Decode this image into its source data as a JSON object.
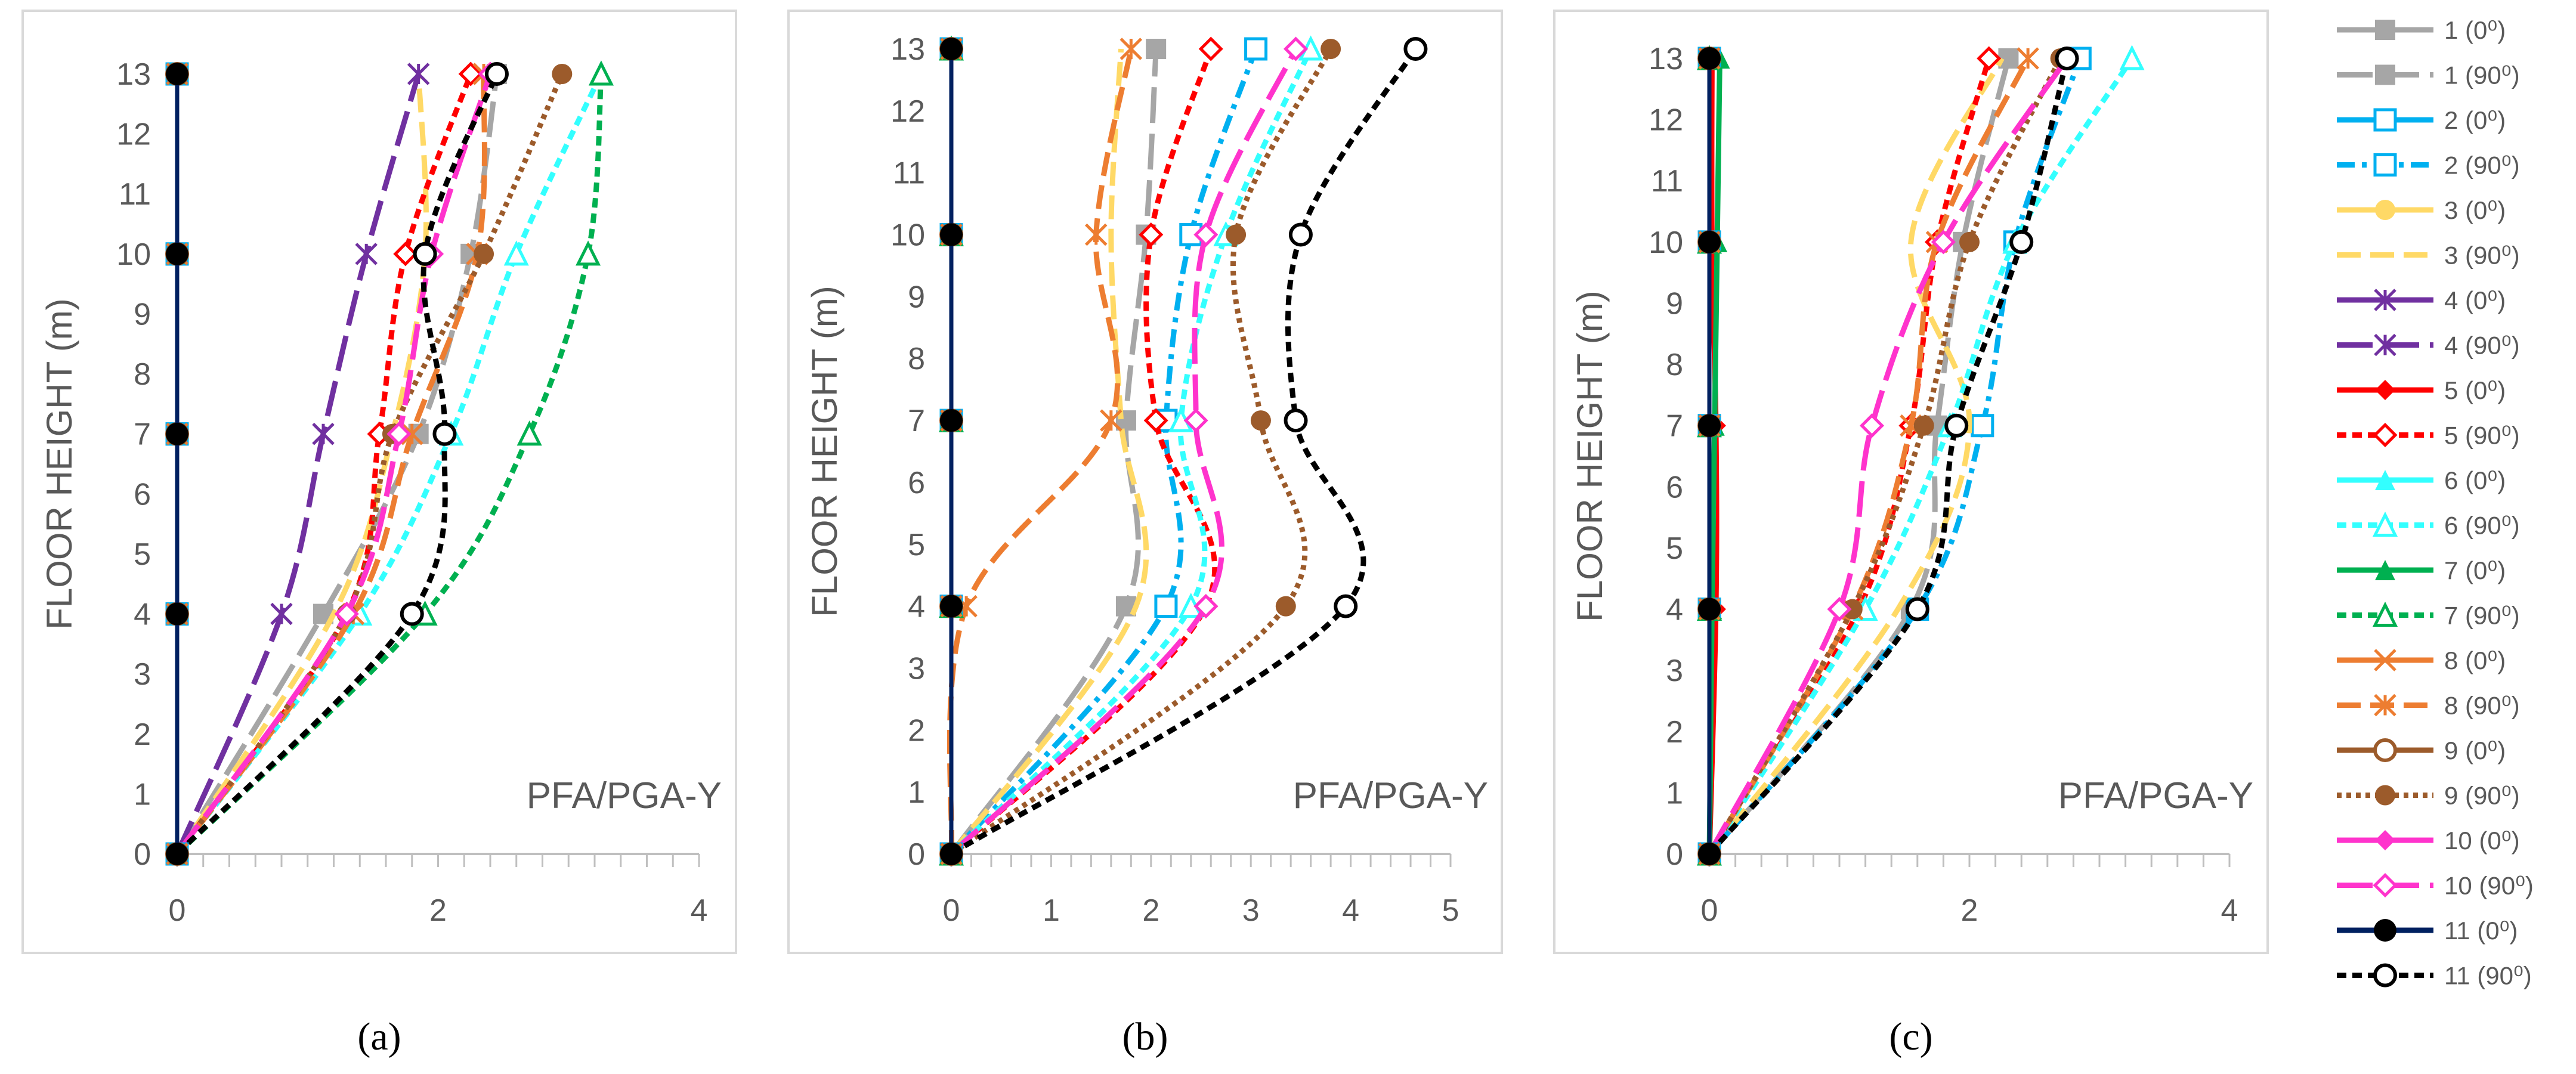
{
  "chart_data": [
    {
      "type": "line",
      "panel_label": "(a)",
      "annotation": "PFA/PGA-Y",
      "ylabel": "FLOOR HEIGHT (m)",
      "xlim": [
        0,
        4
      ],
      "ylim": [
        0,
        13
      ],
      "x_ticks": [
        "0",
        "2",
        "4"
      ],
      "y_ticks": [
        "0",
        "1",
        "2",
        "3",
        "4",
        "5",
        "6",
        "7",
        "8",
        "9",
        "10",
        "11",
        "12",
        "13"
      ],
      "floors": [
        0,
        4,
        7,
        10,
        13
      ],
      "series": [
        {
          "name": "1 (0⁰)",
          "x": [
            0,
            0,
            0,
            0,
            0
          ]
        },
        {
          "name": "1 (90⁰)",
          "x": [
            0,
            1.12,
            1.85,
            2.25,
            2.45
          ]
        },
        {
          "name": "2 (0⁰)",
          "x": [
            0,
            0,
            0,
            0,
            0
          ]
        },
        {
          "name": "2 (90⁰)",
          "x": [
            0,
            0,
            0,
            0,
            0
          ]
        },
        {
          "name": "3 (0⁰)",
          "x": [
            0,
            0,
            0,
            0,
            0
          ]
        },
        {
          "name": "3 (90⁰)",
          "x": [
            0,
            1.2,
            1.65,
            1.9,
            1.85
          ]
        },
        {
          "name": "4 (0⁰)",
          "x": [
            0,
            0,
            0,
            0,
            0
          ]
        },
        {
          "name": "4 (90⁰)",
          "x": [
            0,
            0.8,
            1.12,
            1.45,
            1.85
          ]
        },
        {
          "name": "5 (0⁰)",
          "x": [
            0,
            0,
            0,
            0,
            0
          ]
        },
        {
          "name": "5 (90⁰)",
          "x": [
            0,
            1.3,
            1.55,
            1.75,
            2.25
          ]
        },
        {
          "name": "6 (0⁰)",
          "x": [
            0,
            0,
            0,
            0,
            0
          ]
        },
        {
          "name": "6 (90⁰)",
          "x": [
            0,
            1.4,
            2.1,
            2.6,
            3.25
          ]
        },
        {
          "name": "7 (0⁰)",
          "x": [
            0,
            0,
            0,
            0,
            0
          ]
        },
        {
          "name": "7 (90⁰)",
          "x": [
            0,
            1.9,
            2.7,
            3.15,
            3.25
          ]
        },
        {
          "name": "8 (0⁰)",
          "x": [
            0,
            0,
            0,
            0,
            0
          ]
        },
        {
          "name": "8 (90⁰)",
          "x": [
            0,
            1.35,
            1.8,
            2.3,
            2.35
          ]
        },
        {
          "name": "9 (0⁰)",
          "x": [
            0,
            0,
            0,
            0,
            0
          ]
        },
        {
          "name": "9 (90⁰)",
          "x": [
            0,
            1.3,
            1.65,
            2.35,
            2.95
          ]
        },
        {
          "name": "10 (0⁰)",
          "x": [
            0,
            0,
            0,
            0,
            0
          ]
        },
        {
          "name": "10 (90⁰)",
          "x": [
            0,
            1.3,
            1.7,
            1.95,
            2.4
          ]
        },
        {
          "name": "11 (0⁰)",
          "x": [
            0,
            0,
            0,
            0,
            0
          ]
        },
        {
          "name": "11 (90⁰)",
          "x": [
            0,
            1.8,
            2.05,
            1.9,
            2.45
          ]
        }
      ]
    },
    {
      "type": "line",
      "panel_label": "(b)",
      "annotation": "PFA/PGA-Y",
      "ylabel": "FLOOR HEIGHT (m)",
      "xlim": [
        0,
        5
      ],
      "ylim": [
        0,
        13
      ],
      "x_ticks": [
        "0",
        "1",
        "2",
        "3",
        "4",
        "5"
      ],
      "y_ticks": [
        "0",
        "1",
        "2",
        "3",
        "4",
        "5",
        "6",
        "7",
        "8",
        "9",
        "10",
        "11",
        "12",
        "13"
      ],
      "floors": [
        0,
        4,
        7,
        10,
        13
      ],
      "series": [
        {
          "name": "1 (0⁰)",
          "x": [
            0,
            0,
            0,
            0,
            0
          ]
        },
        {
          "name": "1 (90⁰)",
          "x": [
            0,
            1.75,
            1.75,
            1.95,
            2.05
          ]
        },
        {
          "name": "2 (0⁰)",
          "x": [
            0,
            0,
            0,
            0,
            0
          ]
        },
        {
          "name": "2 (90⁰)",
          "x": [
            0,
            2.15,
            2.15,
            2.4,
            3.05
          ]
        },
        {
          "name": "3 (0⁰)",
          "x": [
            0,
            0,
            0,
            0,
            0
          ]
        },
        {
          "name": "3 (90⁰)",
          "x": [
            0,
            1.85,
            1.7,
            1.6,
            1.7
          ]
        },
        {
          "name": "4 (0⁰)",
          "x": [
            0,
            0,
            0,
            0,
            0
          ]
        },
        {
          "name": "4 (90⁰)",
          "x": [
            0,
            0,
            0,
            0,
            0
          ]
        },
        {
          "name": "5 (0⁰)",
          "x": [
            0,
            0,
            0,
            0,
            0
          ]
        },
        {
          "name": "5 (90⁰)",
          "x": [
            0,
            2.55,
            2.05,
            2.0,
            2.6
          ]
        },
        {
          "name": "6 (0⁰)",
          "x": [
            0,
            0,
            0,
            0,
            0
          ]
        },
        {
          "name": "6 (90⁰)",
          "x": [
            0,
            2.4,
            2.3,
            2.75,
            3.6
          ]
        },
        {
          "name": "7 (0⁰)",
          "x": [
            0,
            0,
            0,
            0,
            0
          ]
        },
        {
          "name": "7 (90⁰)",
          "x": [
            0,
            0,
            0,
            0,
            0
          ]
        },
        {
          "name": "8 (0⁰)",
          "x": [
            0,
            0,
            0,
            0,
            0
          ]
        },
        {
          "name": "8 (90⁰)",
          "x": [
            0,
            0.15,
            1.6,
            1.45,
            1.8
          ]
        },
        {
          "name": "9 (0⁰)",
          "x": [
            0,
            0,
            0,
            0,
            0
          ]
        },
        {
          "name": "9 (90⁰)",
          "x": [
            0,
            3.35,
            3.1,
            2.85,
            3.8
          ]
        },
        {
          "name": "10 (0⁰)",
          "x": [
            0,
            0,
            0,
            0,
            0
          ]
        },
        {
          "name": "10 (90⁰)",
          "x": [
            0,
            2.55,
            2.45,
            2.55,
            3.45
          ]
        },
        {
          "name": "11 (0⁰)",
          "x": [
            0,
            0,
            0,
            0,
            0
          ]
        },
        {
          "name": "11 (90⁰)",
          "x": [
            0,
            3.95,
            3.45,
            3.5,
            4.65
          ]
        }
      ]
    },
    {
      "type": "line",
      "panel_label": "(c)",
      "annotation": "PFA/PGA-Y",
      "ylabel": "FLOOR HEIGHT (m)",
      "xlim": [
        0,
        4
      ],
      "ylim": [
        0,
        13
      ],
      "x_ticks": [
        "0",
        "2",
        "4"
      ],
      "y_ticks": [
        "0",
        "1",
        "2",
        "3",
        "4",
        "5",
        "6",
        "7",
        "8",
        "9",
        "10",
        "11",
        "12",
        "13"
      ],
      "floors": [
        0,
        4,
        7,
        10,
        13
      ],
      "series": [
        {
          "name": "1 (0⁰)",
          "x": [
            0,
            0,
            0,
            0,
            0
          ]
        },
        {
          "name": "1 (90⁰)",
          "x": [
            0,
            1.55,
            1.75,
            1.95,
            2.3
          ]
        },
        {
          "name": "2 (0⁰)",
          "x": [
            0,
            0,
            0,
            0,
            0
          ]
        },
        {
          "name": "2 (90⁰)",
          "x": [
            0,
            1.6,
            2.1,
            2.35,
            2.85
          ]
        },
        {
          "name": "3 (0⁰)",
          "x": [
            0,
            0,
            0,
            0,
            0
          ]
        },
        {
          "name": "3 (90⁰)",
          "x": [
            0,
            1.45,
            2.0,
            1.55,
            2.25
          ]
        },
        {
          "name": "4 (0⁰)",
          "x": [
            0,
            0,
            0,
            0,
            0
          ]
        },
        {
          "name": "4 (90⁰)",
          "x": [
            0,
            0,
            0,
            0,
            0
          ]
        },
        {
          "name": "5 (0⁰)",
          "x": [
            0,
            0.05,
            0.05,
            0.02,
            0.02
          ]
        },
        {
          "name": "5 (90⁰)",
          "x": [
            0,
            1.15,
            1.55,
            1.75,
            2.15
          ]
        },
        {
          "name": "6 (0⁰)",
          "x": [
            0,
            0,
            0,
            0,
            0
          ]
        },
        {
          "name": "6 (90⁰)",
          "x": [
            0,
            1.2,
            1.85,
            2.35,
            3.25
          ]
        },
        {
          "name": "7 (0⁰)",
          "x": [
            0,
            0.02,
            0.04,
            0.06,
            0.08
          ]
        },
        {
          "name": "7 (90⁰)",
          "x": [
            0,
            0,
            0,
            0,
            0
          ]
        },
        {
          "name": "8 (0⁰)",
          "x": [
            0,
            0,
            0,
            0,
            0
          ]
        },
        {
          "name": "8 (90⁰)",
          "x": [
            0,
            1.1,
            1.55,
            1.75,
            2.45
          ]
        },
        {
          "name": "9 (0⁰)",
          "x": [
            0,
            0,
            0,
            0,
            0
          ]
        },
        {
          "name": "9 (90⁰)",
          "x": [
            0,
            1.1,
            1.65,
            2.0,
            2.7
          ]
        },
        {
          "name": "10 (0⁰)",
          "x": [
            0,
            0,
            0,
            0,
            0
          ]
        },
        {
          "name": "10 (90⁰)",
          "x": [
            0,
            1.0,
            1.25,
            1.8,
            2.75
          ]
        },
        {
          "name": "11 (0⁰)",
          "x": [
            0,
            0,
            0,
            0,
            0
          ]
        },
        {
          "name": "11 (90⁰)",
          "x": [
            0,
            1.6,
            1.9,
            2.4,
            2.75
          ]
        }
      ]
    }
  ],
  "legend": [
    {
      "label": "1 (0⁰)",
      "color": "#a6a6a6",
      "dash": "solid",
      "marker": "square-filled"
    },
    {
      "label": "1 (90⁰)",
      "color": "#a6a6a6",
      "dash": "longdash",
      "marker": "square-filled"
    },
    {
      "label": "2 (0⁰)",
      "color": "#00b0f0",
      "dash": "solid",
      "marker": "square-open"
    },
    {
      "label": "2 (90⁰)",
      "color": "#00b0f0",
      "dash": "dashdot",
      "marker": "square-open"
    },
    {
      "label": "3 (0⁰)",
      "color": "#ffd966",
      "dash": "solid",
      "marker": "circle-filled"
    },
    {
      "label": "3 (90⁰)",
      "color": "#ffd966",
      "dash": "dash",
      "marker": "none"
    },
    {
      "label": "4 (0⁰)",
      "color": "#7030a0",
      "dash": "solid",
      "marker": "asterisk"
    },
    {
      "label": "4 (90⁰)",
      "color": "#7030a0",
      "dash": "longdash",
      "marker": "asterisk"
    },
    {
      "label": "5 (0⁰)",
      "color": "#ff0000",
      "dash": "solid",
      "marker": "diamond-filled"
    },
    {
      "label": "5 (90⁰)",
      "color": "#ff0000",
      "dash": "shortdash",
      "marker": "diamond-open"
    },
    {
      "label": "6 (0⁰)",
      "color": "#33ffff",
      "dash": "solid",
      "marker": "triangle-filled"
    },
    {
      "label": "6 (90⁰)",
      "color": "#33ffff",
      "dash": "shortdash",
      "marker": "triangle-open"
    },
    {
      "label": "7 (0⁰)",
      "color": "#00b050",
      "dash": "solid",
      "marker": "triangle-filled"
    },
    {
      "label": "7 (90⁰)",
      "color": "#00b050",
      "dash": "shortdash",
      "marker": "triangle-open"
    },
    {
      "label": "8 (0⁰)",
      "color": "#ed7d31",
      "dash": "solid",
      "marker": "x"
    },
    {
      "label": "8 (90⁰)",
      "color": "#ed7d31",
      "dash": "dash",
      "marker": "asterisk"
    },
    {
      "label": "9 (0⁰)",
      "color": "#9c5b2b",
      "dash": "solid",
      "marker": "circle-open"
    },
    {
      "label": "9 (90⁰)",
      "color": "#9c5b2b",
      "dash": "dot",
      "marker": "circle-filled"
    },
    {
      "label": "10 (0⁰)",
      "color": "#ff33cc",
      "dash": "solid",
      "marker": "diamond-filled"
    },
    {
      "label": "10 (90⁰)",
      "color": "#ff33cc",
      "dash": "longdash",
      "marker": "diamond-open"
    },
    {
      "label": "11 (0⁰)",
      "color": "#002060",
      "dash": "solid",
      "marker": "circle-filled-black"
    },
    {
      "label": "11 (90⁰)",
      "color": "#000000",
      "dash": "shortdash",
      "marker": "circle-open"
    }
  ]
}
